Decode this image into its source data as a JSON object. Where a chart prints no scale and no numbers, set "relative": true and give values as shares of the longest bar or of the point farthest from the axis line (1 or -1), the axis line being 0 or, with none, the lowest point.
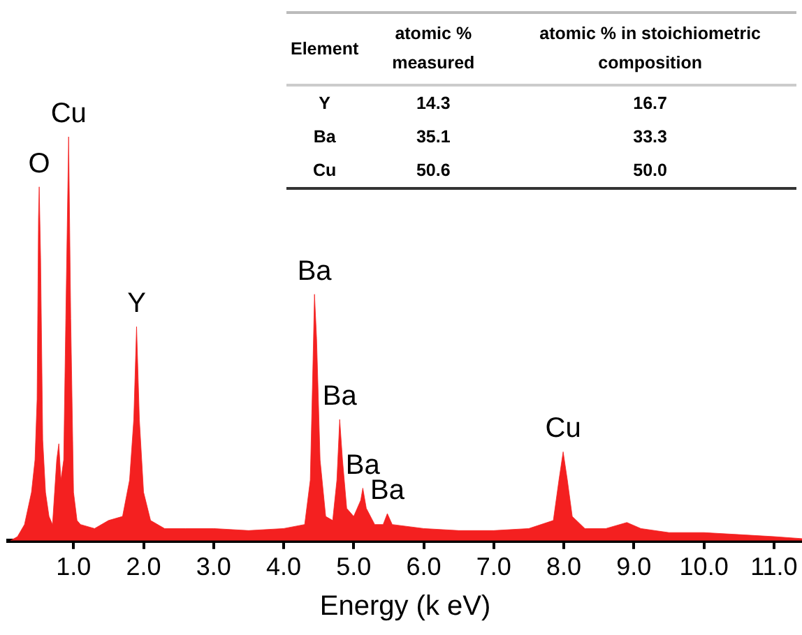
{
  "chart_data": {
    "type": "area",
    "relative": true,
    "xlabel": "Energy (k eV)",
    "xlim": [
      0.07,
      11.4
    ],
    "xticks": [
      {
        "value": 1,
        "label": "1.0"
      },
      {
        "value": 2,
        "label": "2.0"
      },
      {
        "value": 3,
        "label": "3.0"
      },
      {
        "value": 4,
        "label": "4.0"
      },
      {
        "value": 5,
        "label": "5.0"
      },
      {
        "value": 6,
        "label": "6.0"
      },
      {
        "value": 7,
        "label": "7.0"
      },
      {
        "value": 8,
        "label": "8.0"
      },
      {
        "value": 9,
        "label": "9.0"
      },
      {
        "value": 10,
        "label": "10.0"
      },
      {
        "value": 11,
        "label": "11.0"
      }
    ],
    "grid": false,
    "legend": false,
    "series": [
      {
        "color": "#f42020",
        "x": [
          0.1,
          0.2,
          0.3,
          0.4,
          0.45,
          0.48,
          0.5,
          0.51,
          0.53,
          0.56,
          0.6,
          0.65,
          0.7,
          0.73,
          0.76,
          0.79,
          0.82,
          0.86,
          0.89,
          0.93,
          0.96,
          1.0,
          1.05,
          1.1,
          1.3,
          1.5,
          1.7,
          1.8,
          1.86,
          1.9,
          1.94,
          2.0,
          2.1,
          2.3,
          2.6,
          3.0,
          3.5,
          4.0,
          4.3,
          4.38,
          4.42,
          4.44,
          4.47,
          4.52,
          4.6,
          4.7,
          4.76,
          4.8,
          4.84,
          4.9,
          5.0,
          5.1,
          5.13,
          5.18,
          5.3,
          5.42,
          5.48,
          5.55,
          6.0,
          6.5,
          7.0,
          7.5,
          7.85,
          7.93,
          7.99,
          8.05,
          8.12,
          8.3,
          8.6,
          8.9,
          9.1,
          9.5,
          10.0,
          10.5,
          11.0,
          11.4
        ],
        "values": [
          0,
          0.01,
          0.04,
          0.12,
          0.2,
          0.35,
          0.8,
          0.876,
          0.7,
          0.25,
          0.12,
          0.06,
          0.04,
          0.12,
          0.2,
          0.24,
          0.15,
          0.2,
          0.55,
          1.0,
          0.55,
          0.12,
          0.05,
          0.04,
          0.03,
          0.05,
          0.06,
          0.15,
          0.3,
          0.53,
          0.3,
          0.12,
          0.05,
          0.03,
          0.03,
          0.03,
          0.025,
          0.03,
          0.04,
          0.15,
          0.45,
          0.61,
          0.5,
          0.2,
          0.06,
          0.05,
          0.15,
          0.3,
          0.2,
          0.08,
          0.06,
          0.1,
          0.13,
          0.08,
          0.04,
          0.04,
          0.067,
          0.04,
          0.03,
          0.025,
          0.025,
          0.03,
          0.05,
          0.15,
          0.22,
          0.15,
          0.06,
          0.03,
          0.03,
          0.045,
          0.03,
          0.02,
          0.02,
          0.015,
          0.01,
          0.005
        ]
      }
    ],
    "annotations": [
      {
        "text": "O",
        "x": 0.51,
        "y": 0.876
      },
      {
        "text": "Cu",
        "x": 0.93,
        "y": 1.0
      },
      {
        "text": "Y",
        "x": 1.9,
        "y": 0.53
      },
      {
        "text": "Ba",
        "x": 4.44,
        "y": 0.61
      },
      {
        "text": "Ba",
        "x": 4.8,
        "y": 0.3
      },
      {
        "text": "Ba",
        "x": 5.13,
        "y": 0.13
      },
      {
        "text": "Ba",
        "x": 5.48,
        "y": 0.067
      },
      {
        "text": "Cu",
        "x": 7.99,
        "y": 0.22
      },
      "Element",
      "atomic % measured",
      "atomic % in stoichiometric composition",
      "Y",
      "14.3",
      "16.7",
      "Ba",
      "35.1",
      "33.3",
      "Cu",
      "50.6",
      "50.0"
    ]
  }
}
